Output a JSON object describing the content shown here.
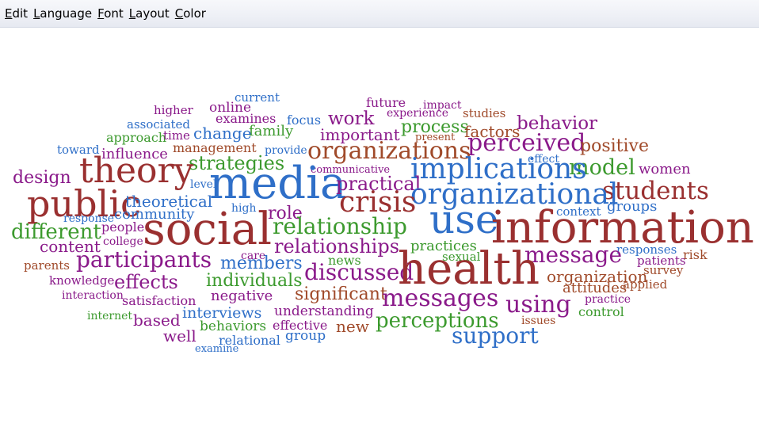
{
  "menu": [
    {
      "mn": "E",
      "rest": "dit"
    },
    {
      "mn": "L",
      "rest": "anguage"
    },
    {
      "mn": "F",
      "rest": "ont"
    },
    {
      "mn": "L",
      "rest": "ayout"
    },
    {
      "mn": "C",
      "rest": "olor"
    }
  ],
  "cloud": {
    "colors": {
      "red": "#9a3030",
      "blue": "#2f6fc8",
      "purple": "#8a1a8a",
      "green": "#3c9a2e",
      "brown": "#a04a2a"
    },
    "words": [
      {
        "text": "current",
        "color": "blue"
      },
      {
        "text": "future",
        "color": "purple"
      },
      {
        "text": "impact",
        "color": "purple"
      },
      {
        "text": "higher",
        "color": "purple"
      },
      {
        "text": "online",
        "color": "purple"
      },
      {
        "text": "experience",
        "color": "purple"
      },
      {
        "text": "studies",
        "color": "brown"
      },
      {
        "text": "examines",
        "color": "purple"
      },
      {
        "text": "focus",
        "color": "blue"
      },
      {
        "text": "work",
        "color": "purple"
      },
      {
        "text": "present",
        "color": "brown"
      },
      {
        "text": "associated",
        "color": "blue"
      },
      {
        "text": "family",
        "color": "green"
      },
      {
        "text": "important",
        "color": "purple"
      },
      {
        "text": "process",
        "color": "green"
      },
      {
        "text": "behavior",
        "color": "purple"
      },
      {
        "text": "approach",
        "color": "green"
      },
      {
        "text": "time",
        "color": "purple"
      },
      {
        "text": "change",
        "color": "blue"
      },
      {
        "text": "factors",
        "color": "brown"
      },
      {
        "text": "toward",
        "color": "blue"
      },
      {
        "text": "management",
        "color": "brown"
      },
      {
        "text": "perceived",
        "color": "purple"
      },
      {
        "text": "positive",
        "color": "brown"
      },
      {
        "text": "influence",
        "color": "purple"
      },
      {
        "text": "provide",
        "color": "blue"
      },
      {
        "text": "organizations",
        "color": "brown"
      },
      {
        "text": "effect",
        "color": "blue"
      },
      {
        "text": "strategies",
        "color": "green"
      },
      {
        "text": "model",
        "color": "green"
      },
      {
        "text": "women",
        "color": "purple"
      },
      {
        "text": "design",
        "color": "purple"
      },
      {
        "text": "theory",
        "color": "red"
      },
      {
        "text": "communicative",
        "color": "purple"
      },
      {
        "text": "implications",
        "color": "blue"
      },
      {
        "text": "media",
        "color": "blue"
      },
      {
        "text": "practical",
        "color": "purple"
      },
      {
        "text": "level",
        "color": "blue"
      },
      {
        "text": "students",
        "color": "red"
      },
      {
        "text": "organizational",
        "color": "blue"
      },
      {
        "text": "public",
        "color": "red"
      },
      {
        "text": "theoretical",
        "color": "blue"
      },
      {
        "text": "crisis",
        "color": "red"
      },
      {
        "text": "high",
        "color": "blue"
      },
      {
        "text": "role",
        "color": "purple"
      },
      {
        "text": "context",
        "color": "blue"
      },
      {
        "text": "groups",
        "color": "blue"
      },
      {
        "text": "use",
        "color": "blue"
      },
      {
        "text": "community",
        "color": "blue"
      },
      {
        "text": "response",
        "color": "blue"
      },
      {
        "text": "information",
        "color": "red"
      },
      {
        "text": "different",
        "color": "green"
      },
      {
        "text": "people",
        "color": "purple"
      },
      {
        "text": "social",
        "color": "red"
      },
      {
        "text": "relationship",
        "color": "green"
      },
      {
        "text": "college",
        "color": "purple"
      },
      {
        "text": "content",
        "color": "purple"
      },
      {
        "text": "relationships",
        "color": "purple"
      },
      {
        "text": "practices",
        "color": "green"
      },
      {
        "text": "responses",
        "color": "blue"
      },
      {
        "text": "risk",
        "color": "brown"
      },
      {
        "text": "message",
        "color": "purple"
      },
      {
        "text": "participants",
        "color": "purple"
      },
      {
        "text": "care",
        "color": "purple"
      },
      {
        "text": "sexual",
        "color": "green"
      },
      {
        "text": "patients",
        "color": "purple"
      },
      {
        "text": "members",
        "color": "blue"
      },
      {
        "text": "news",
        "color": "green"
      },
      {
        "text": "parents",
        "color": "brown"
      },
      {
        "text": "discussed",
        "color": "purple"
      },
      {
        "text": "health",
        "color": "red"
      },
      {
        "text": "survey",
        "color": "brown"
      },
      {
        "text": "organization",
        "color": "brown"
      },
      {
        "text": "knowledge",
        "color": "purple"
      },
      {
        "text": "effects",
        "color": "purple"
      },
      {
        "text": "individuals",
        "color": "green"
      },
      {
        "text": "applied",
        "color": "brown"
      },
      {
        "text": "attitudes",
        "color": "brown"
      },
      {
        "text": "interaction",
        "color": "purple"
      },
      {
        "text": "significant",
        "color": "brown"
      },
      {
        "text": "negative",
        "color": "purple"
      },
      {
        "text": "messages",
        "color": "purple"
      },
      {
        "text": "satisfaction",
        "color": "purple"
      },
      {
        "text": "practice",
        "color": "purple"
      },
      {
        "text": "using",
        "color": "purple"
      },
      {
        "text": "understanding",
        "color": "purple"
      },
      {
        "text": "internet",
        "color": "green"
      },
      {
        "text": "interviews",
        "color": "blue"
      },
      {
        "text": "control",
        "color": "green"
      },
      {
        "text": "based",
        "color": "purple"
      },
      {
        "text": "perceptions",
        "color": "green"
      },
      {
        "text": "behaviors",
        "color": "green"
      },
      {
        "text": "new",
        "color": "brown"
      },
      {
        "text": "issues",
        "color": "brown"
      },
      {
        "text": "effective",
        "color": "purple"
      },
      {
        "text": "well",
        "color": "purple"
      },
      {
        "text": "group",
        "color": "blue"
      },
      {
        "text": "support",
        "color": "blue"
      },
      {
        "text": "relational",
        "color": "blue"
      },
      {
        "text": "examine",
        "color": "blue"
      }
    ]
  }
}
